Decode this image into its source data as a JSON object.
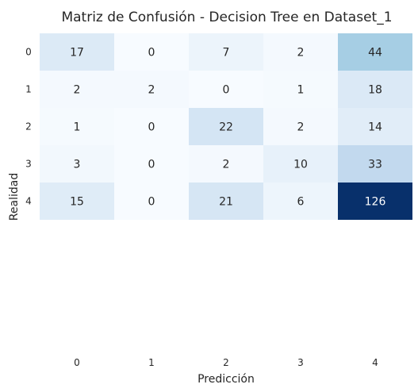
{
  "chart_data": {
    "type": "heatmap",
    "title": "Matriz de Confusión - Decision Tree en Dataset_1",
    "xlabel": "Predicción",
    "ylabel": "Realidad",
    "x_ticks": [
      "0",
      "1",
      "2",
      "3",
      "4"
    ],
    "y_ticks": [
      "0",
      "1",
      "2",
      "3",
      "4"
    ],
    "matrix": [
      [
        17,
        0,
        7,
        2,
        44
      ],
      [
        2,
        2,
        0,
        1,
        18
      ],
      [
        1,
        0,
        22,
        2,
        14
      ],
      [
        3,
        0,
        2,
        10,
        33
      ],
      [
        15,
        0,
        21,
        6,
        126
      ]
    ],
    "colormap": "Blues",
    "value_range": [
      0,
      126
    ],
    "colorbar": false,
    "colors": {
      "low": "#f7fbff",
      "high": "#08306b",
      "text_dark": "#262626",
      "text_light": "#ffffff"
    }
  }
}
